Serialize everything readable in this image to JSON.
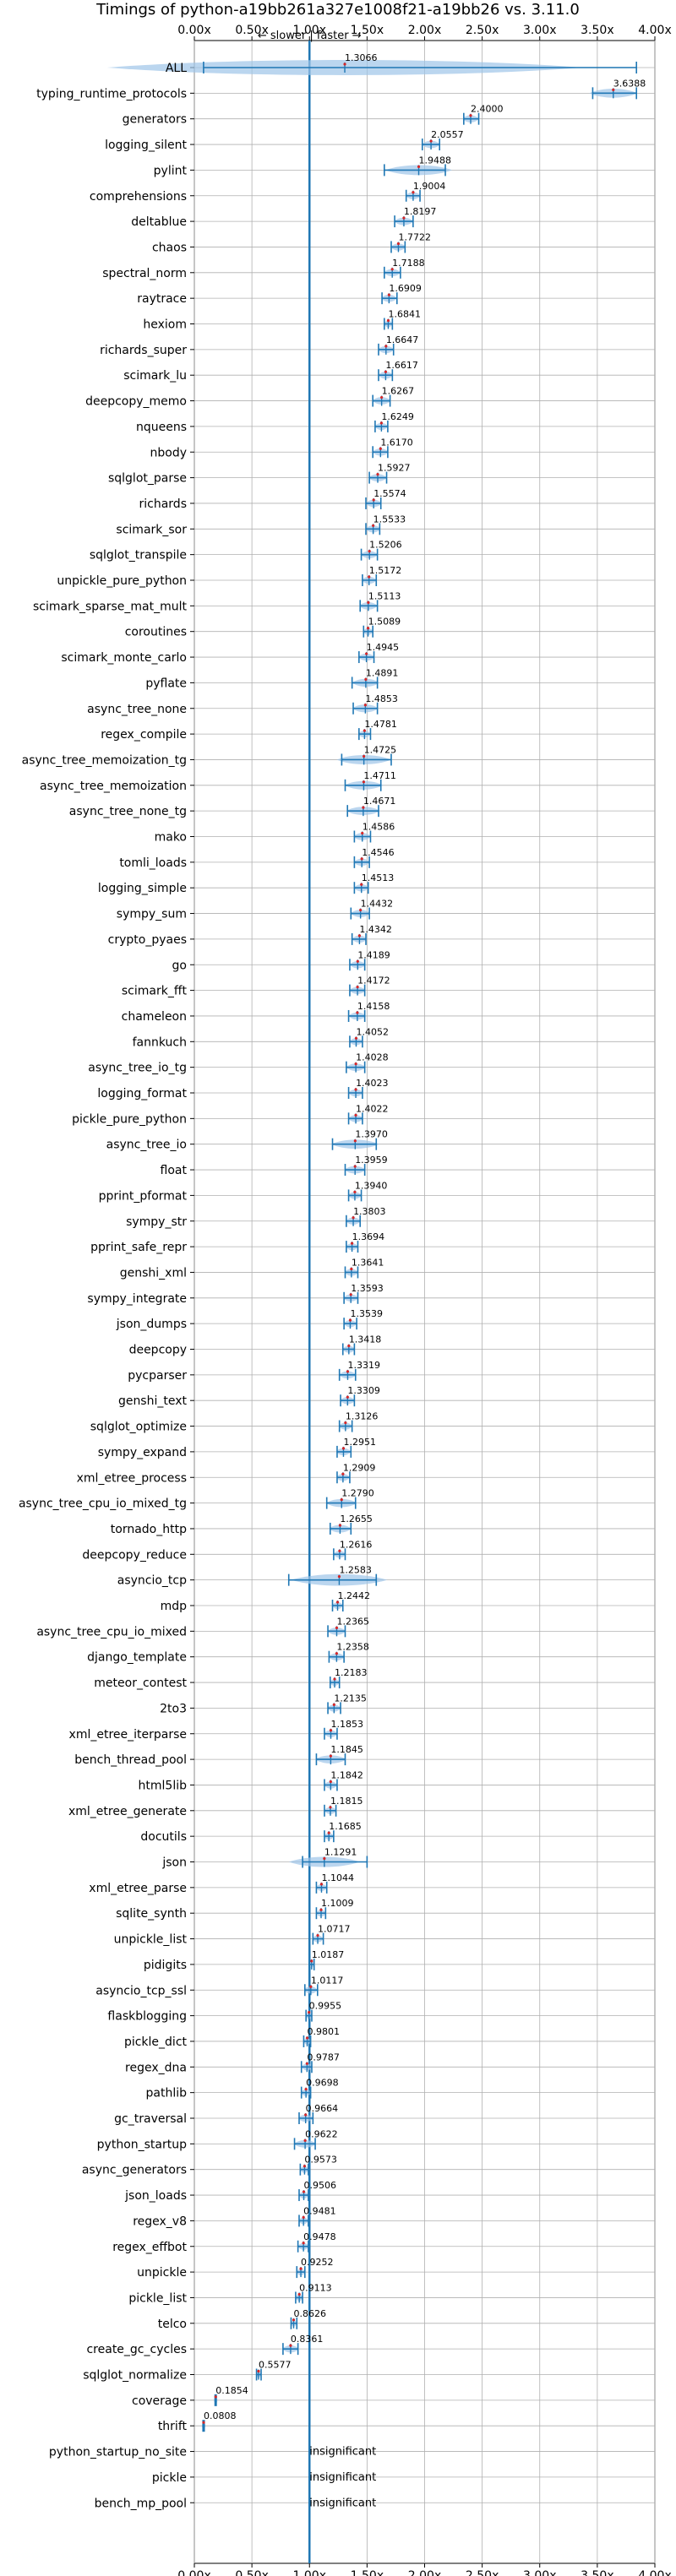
{
  "chart_data": {
    "type": "violin",
    "title": "Timings of python-a19bb261a327e1008f21-a19bb26 vs. 3.11.0",
    "annotation": "← slower | faster →",
    "x_ticks": [
      "0.00x",
      "0.50x",
      "1.00x",
      "1.50x",
      "2.00x",
      "2.50x",
      "3.00x",
      "3.50x",
      "4.00x"
    ],
    "xlim": [
      0,
      4
    ],
    "reference_line": 1.0,
    "grid": true,
    "colors": {
      "violin": "#9ec4e8",
      "line": "#1f77b4",
      "mean_marker": "#d62728",
      "grid": "#b0b0b0"
    },
    "benchmarks": [
      {
        "name": "ALL",
        "label": "1.3066",
        "center": 1.3066,
        "min": 0.08,
        "max": 3.84
      },
      {
        "name": "typing_runtime_protocols",
        "label": "3.6388",
        "center": 3.6388,
        "min": 3.46,
        "max": 3.84
      },
      {
        "name": "generators",
        "label": "2.4000",
        "center": 2.4,
        "min": 2.34,
        "max": 2.47
      },
      {
        "name": "logging_silent",
        "label": "2.0557",
        "center": 2.0557,
        "min": 1.98,
        "max": 2.13
      },
      {
        "name": "pylint",
        "label": "1.9488",
        "center": 1.9488,
        "min": 1.65,
        "max": 2.18
      },
      {
        "name": "comprehensions",
        "label": "1.9004",
        "center": 1.9004,
        "min": 1.84,
        "max": 1.96
      },
      {
        "name": "deltablue",
        "label": "1.8197",
        "center": 1.8197,
        "min": 1.74,
        "max": 1.9
      },
      {
        "name": "chaos",
        "label": "1.7722",
        "center": 1.7722,
        "min": 1.71,
        "max": 1.83
      },
      {
        "name": "spectral_norm",
        "label": "1.7188",
        "center": 1.7188,
        "min": 1.65,
        "max": 1.79
      },
      {
        "name": "raytrace",
        "label": "1.6909",
        "center": 1.6909,
        "min": 1.63,
        "max": 1.76
      },
      {
        "name": "hexiom",
        "label": "1.6841",
        "center": 1.6841,
        "min": 1.65,
        "max": 1.72
      },
      {
        "name": "richards_super",
        "label": "1.6647",
        "center": 1.6647,
        "min": 1.6,
        "max": 1.73
      },
      {
        "name": "scimark_lu",
        "label": "1.6617",
        "center": 1.6617,
        "min": 1.6,
        "max": 1.72
      },
      {
        "name": "deepcopy_memo",
        "label": "1.6267",
        "center": 1.6267,
        "min": 1.55,
        "max": 1.7
      },
      {
        "name": "nqueens",
        "label": "1.6249",
        "center": 1.6249,
        "min": 1.57,
        "max": 1.68
      },
      {
        "name": "nbody",
        "label": "1.6170",
        "center": 1.617,
        "min": 1.55,
        "max": 1.68
      },
      {
        "name": "sqlglot_parse",
        "label": "1.5927",
        "center": 1.5927,
        "min": 1.52,
        "max": 1.67
      },
      {
        "name": "richards",
        "label": "1.5574",
        "center": 1.5574,
        "min": 1.49,
        "max": 1.62
      },
      {
        "name": "scimark_sor",
        "label": "1.5533",
        "center": 1.5533,
        "min": 1.49,
        "max": 1.61
      },
      {
        "name": "sqlglot_transpile",
        "label": "1.5206",
        "center": 1.5206,
        "min": 1.45,
        "max": 1.59
      },
      {
        "name": "unpickle_pure_python",
        "label": "1.5172",
        "center": 1.5172,
        "min": 1.46,
        "max": 1.58
      },
      {
        "name": "scimark_sparse_mat_mult",
        "label": "1.5113",
        "center": 1.5113,
        "min": 1.44,
        "max": 1.59
      },
      {
        "name": "coroutines",
        "label": "1.5089",
        "center": 1.5089,
        "min": 1.47,
        "max": 1.55
      },
      {
        "name": "scimark_monte_carlo",
        "label": "1.4945",
        "center": 1.4945,
        "min": 1.43,
        "max": 1.56
      },
      {
        "name": "pyflate",
        "label": "1.4891",
        "center": 1.4891,
        "min": 1.37,
        "max": 1.59
      },
      {
        "name": "async_tree_none",
        "label": "1.4853",
        "center": 1.4853,
        "min": 1.38,
        "max": 1.59
      },
      {
        "name": "regex_compile",
        "label": "1.4781",
        "center": 1.4781,
        "min": 1.43,
        "max": 1.53
      },
      {
        "name": "async_tree_memoization_tg",
        "label": "1.4725",
        "center": 1.4725,
        "min": 1.28,
        "max": 1.71
      },
      {
        "name": "async_tree_memoization",
        "label": "1.4711",
        "center": 1.4711,
        "min": 1.31,
        "max": 1.62
      },
      {
        "name": "async_tree_none_tg",
        "label": "1.4671",
        "center": 1.4671,
        "min": 1.33,
        "max": 1.6
      },
      {
        "name": "mako",
        "label": "1.4586",
        "center": 1.4586,
        "min": 1.39,
        "max": 1.53
      },
      {
        "name": "tomli_loads",
        "label": "1.4546",
        "center": 1.4546,
        "min": 1.39,
        "max": 1.52
      },
      {
        "name": "logging_simple",
        "label": "1.4513",
        "center": 1.4513,
        "min": 1.39,
        "max": 1.51
      },
      {
        "name": "sympy_sum",
        "label": "1.4432",
        "center": 1.4432,
        "min": 1.36,
        "max": 1.52
      },
      {
        "name": "crypto_pyaes",
        "label": "1.4342",
        "center": 1.4342,
        "min": 1.37,
        "max": 1.49
      },
      {
        "name": "go",
        "label": "1.4189",
        "center": 1.4189,
        "min": 1.35,
        "max": 1.48
      },
      {
        "name": "scimark_fft",
        "label": "1.4172",
        "center": 1.4172,
        "min": 1.35,
        "max": 1.48
      },
      {
        "name": "chameleon",
        "label": "1.4158",
        "center": 1.4158,
        "min": 1.34,
        "max": 1.48
      },
      {
        "name": "fannkuch",
        "label": "1.4052",
        "center": 1.4052,
        "min": 1.35,
        "max": 1.46
      },
      {
        "name": "async_tree_io_tg",
        "label": "1.4028",
        "center": 1.4028,
        "min": 1.32,
        "max": 1.48
      },
      {
        "name": "logging_format",
        "label": "1.4023",
        "center": 1.4023,
        "min": 1.34,
        "max": 1.46
      },
      {
        "name": "pickle_pure_python",
        "label": "1.4022",
        "center": 1.4022,
        "min": 1.34,
        "max": 1.46
      },
      {
        "name": "async_tree_io",
        "label": "1.3970",
        "center": 1.397,
        "min": 1.2,
        "max": 1.58
      },
      {
        "name": "float",
        "label": "1.3959",
        "center": 1.3959,
        "min": 1.31,
        "max": 1.48
      },
      {
        "name": "pprint_pformat",
        "label": "1.3940",
        "center": 1.394,
        "min": 1.34,
        "max": 1.45
      },
      {
        "name": "sympy_str",
        "label": "1.3803",
        "center": 1.3803,
        "min": 1.32,
        "max": 1.44
      },
      {
        "name": "pprint_safe_repr",
        "label": "1.3694",
        "center": 1.3694,
        "min": 1.32,
        "max": 1.42
      },
      {
        "name": "genshi_xml",
        "label": "1.3641",
        "center": 1.3641,
        "min": 1.31,
        "max": 1.42
      },
      {
        "name": "sympy_integrate",
        "label": "1.3593",
        "center": 1.3593,
        "min": 1.3,
        "max": 1.42
      },
      {
        "name": "json_dumps",
        "label": "1.3539",
        "center": 1.3539,
        "min": 1.3,
        "max": 1.41
      },
      {
        "name": "deepcopy",
        "label": "1.3418",
        "center": 1.3418,
        "min": 1.29,
        "max": 1.39
      },
      {
        "name": "pycparser",
        "label": "1.3319",
        "center": 1.3319,
        "min": 1.26,
        "max": 1.4
      },
      {
        "name": "genshi_text",
        "label": "1.3309",
        "center": 1.3309,
        "min": 1.27,
        "max": 1.39
      },
      {
        "name": "sqlglot_optimize",
        "label": "1.3126",
        "center": 1.3126,
        "min": 1.26,
        "max": 1.37
      },
      {
        "name": "sympy_expand",
        "label": "1.2951",
        "center": 1.2951,
        "min": 1.24,
        "max": 1.36
      },
      {
        "name": "xml_etree_process",
        "label": "1.2909",
        "center": 1.2909,
        "min": 1.24,
        "max": 1.35
      },
      {
        "name": "async_tree_cpu_io_mixed_tg",
        "label": "1.2790",
        "center": 1.279,
        "min": 1.15,
        "max": 1.4
      },
      {
        "name": "tornado_http",
        "label": "1.2655",
        "center": 1.2655,
        "min": 1.18,
        "max": 1.36
      },
      {
        "name": "deepcopy_reduce",
        "label": "1.2616",
        "center": 1.2616,
        "min": 1.21,
        "max": 1.31
      },
      {
        "name": "asyncio_tcp",
        "label": "1.2583",
        "center": 1.2583,
        "min": 0.82,
        "max": 1.58
      },
      {
        "name": "mdp",
        "label": "1.2442",
        "center": 1.2442,
        "min": 1.2,
        "max": 1.29
      },
      {
        "name": "async_tree_cpu_io_mixed",
        "label": "1.2365",
        "center": 1.2365,
        "min": 1.16,
        "max": 1.31
      },
      {
        "name": "django_template",
        "label": "1.2358",
        "center": 1.2358,
        "min": 1.17,
        "max": 1.3
      },
      {
        "name": "meteor_contest",
        "label": "1.2183",
        "center": 1.2183,
        "min": 1.18,
        "max": 1.26
      },
      {
        "name": "2to3",
        "label": "1.2135",
        "center": 1.2135,
        "min": 1.16,
        "max": 1.27
      },
      {
        "name": "xml_etree_iterparse",
        "label": "1.1853",
        "center": 1.1853,
        "min": 1.13,
        "max": 1.24
      },
      {
        "name": "bench_thread_pool",
        "label": "1.1845",
        "center": 1.1845,
        "min": 1.06,
        "max": 1.31
      },
      {
        "name": "html5lib",
        "label": "1.1842",
        "center": 1.1842,
        "min": 1.13,
        "max": 1.24
      },
      {
        "name": "xml_etree_generate",
        "label": "1.1815",
        "center": 1.1815,
        "min": 1.13,
        "max": 1.23
      },
      {
        "name": "docutils",
        "label": "1.1685",
        "center": 1.1685,
        "min": 1.13,
        "max": 1.21
      },
      {
        "name": "json",
        "label": "1.1291",
        "center": 1.1291,
        "min": 0.94,
        "max": 1.5
      },
      {
        "name": "xml_etree_parse",
        "label": "1.1044",
        "center": 1.1044,
        "min": 1.06,
        "max": 1.15
      },
      {
        "name": "sqlite_synth",
        "label": "1.1009",
        "center": 1.1009,
        "min": 1.06,
        "max": 1.14
      },
      {
        "name": "unpickle_list",
        "label": "1.0717",
        "center": 1.0717,
        "min": 1.03,
        "max": 1.12
      },
      {
        "name": "pidigits",
        "label": "1.0187",
        "center": 1.0187,
        "min": 1.0,
        "max": 1.04
      },
      {
        "name": "asyncio_tcp_ssl",
        "label": "1.0117",
        "center": 1.0117,
        "min": 0.96,
        "max": 1.07
      },
      {
        "name": "flaskblogging",
        "label": "0.9955",
        "center": 0.9955,
        "min": 0.97,
        "max": 1.02
      },
      {
        "name": "pickle_dict",
        "label": "0.9801",
        "center": 0.9801,
        "min": 0.95,
        "max": 1.01
      },
      {
        "name": "regex_dna",
        "label": "0.9787",
        "center": 0.9787,
        "min": 0.93,
        "max": 1.02
      },
      {
        "name": "pathlib",
        "label": "0.9698",
        "center": 0.9698,
        "min": 0.93,
        "max": 1.01
      },
      {
        "name": "gc_traversal",
        "label": "0.9664",
        "center": 0.9664,
        "min": 0.91,
        "max": 1.03
      },
      {
        "name": "python_startup",
        "label": "0.9622",
        "center": 0.9622,
        "min": 0.87,
        "max": 1.05
      },
      {
        "name": "async_generators",
        "label": "0.9573",
        "center": 0.9573,
        "min": 0.92,
        "max": 0.99
      },
      {
        "name": "json_loads",
        "label": "0.9506",
        "center": 0.9506,
        "min": 0.91,
        "max": 0.99
      },
      {
        "name": "regex_v8",
        "label": "0.9481",
        "center": 0.9481,
        "min": 0.91,
        "max": 0.99
      },
      {
        "name": "regex_effbot",
        "label": "0.9478",
        "center": 0.9478,
        "min": 0.9,
        "max": 0.99
      },
      {
        "name": "unpickle",
        "label": "0.9252",
        "center": 0.9252,
        "min": 0.89,
        "max": 0.96
      },
      {
        "name": "pickle_list",
        "label": "0.9113",
        "center": 0.9113,
        "min": 0.88,
        "max": 0.94
      },
      {
        "name": "telco",
        "label": "0.8626",
        "center": 0.8626,
        "min": 0.84,
        "max": 0.89
      },
      {
        "name": "create_gc_cycles",
        "label": "0.8361",
        "center": 0.8361,
        "min": 0.77,
        "max": 0.9
      },
      {
        "name": "sqlglot_normalize",
        "label": "0.5577",
        "center": 0.5577,
        "min": 0.54,
        "max": 0.58
      },
      {
        "name": "coverage",
        "label": "0.1854",
        "center": 0.1854,
        "min": 0.18,
        "max": 0.19
      },
      {
        "name": "thrift",
        "label": "0.0808",
        "center": 0.0808,
        "min": 0.075,
        "max": 0.086
      },
      {
        "name": "python_startup_no_site",
        "label": "insignificant",
        "center": null,
        "min": null,
        "max": null
      },
      {
        "name": "pickle",
        "label": "insignificant",
        "center": null,
        "min": null,
        "max": null
      },
      {
        "name": "bench_mp_pool",
        "label": "insignificant",
        "center": null,
        "min": null,
        "max": null
      }
    ]
  }
}
